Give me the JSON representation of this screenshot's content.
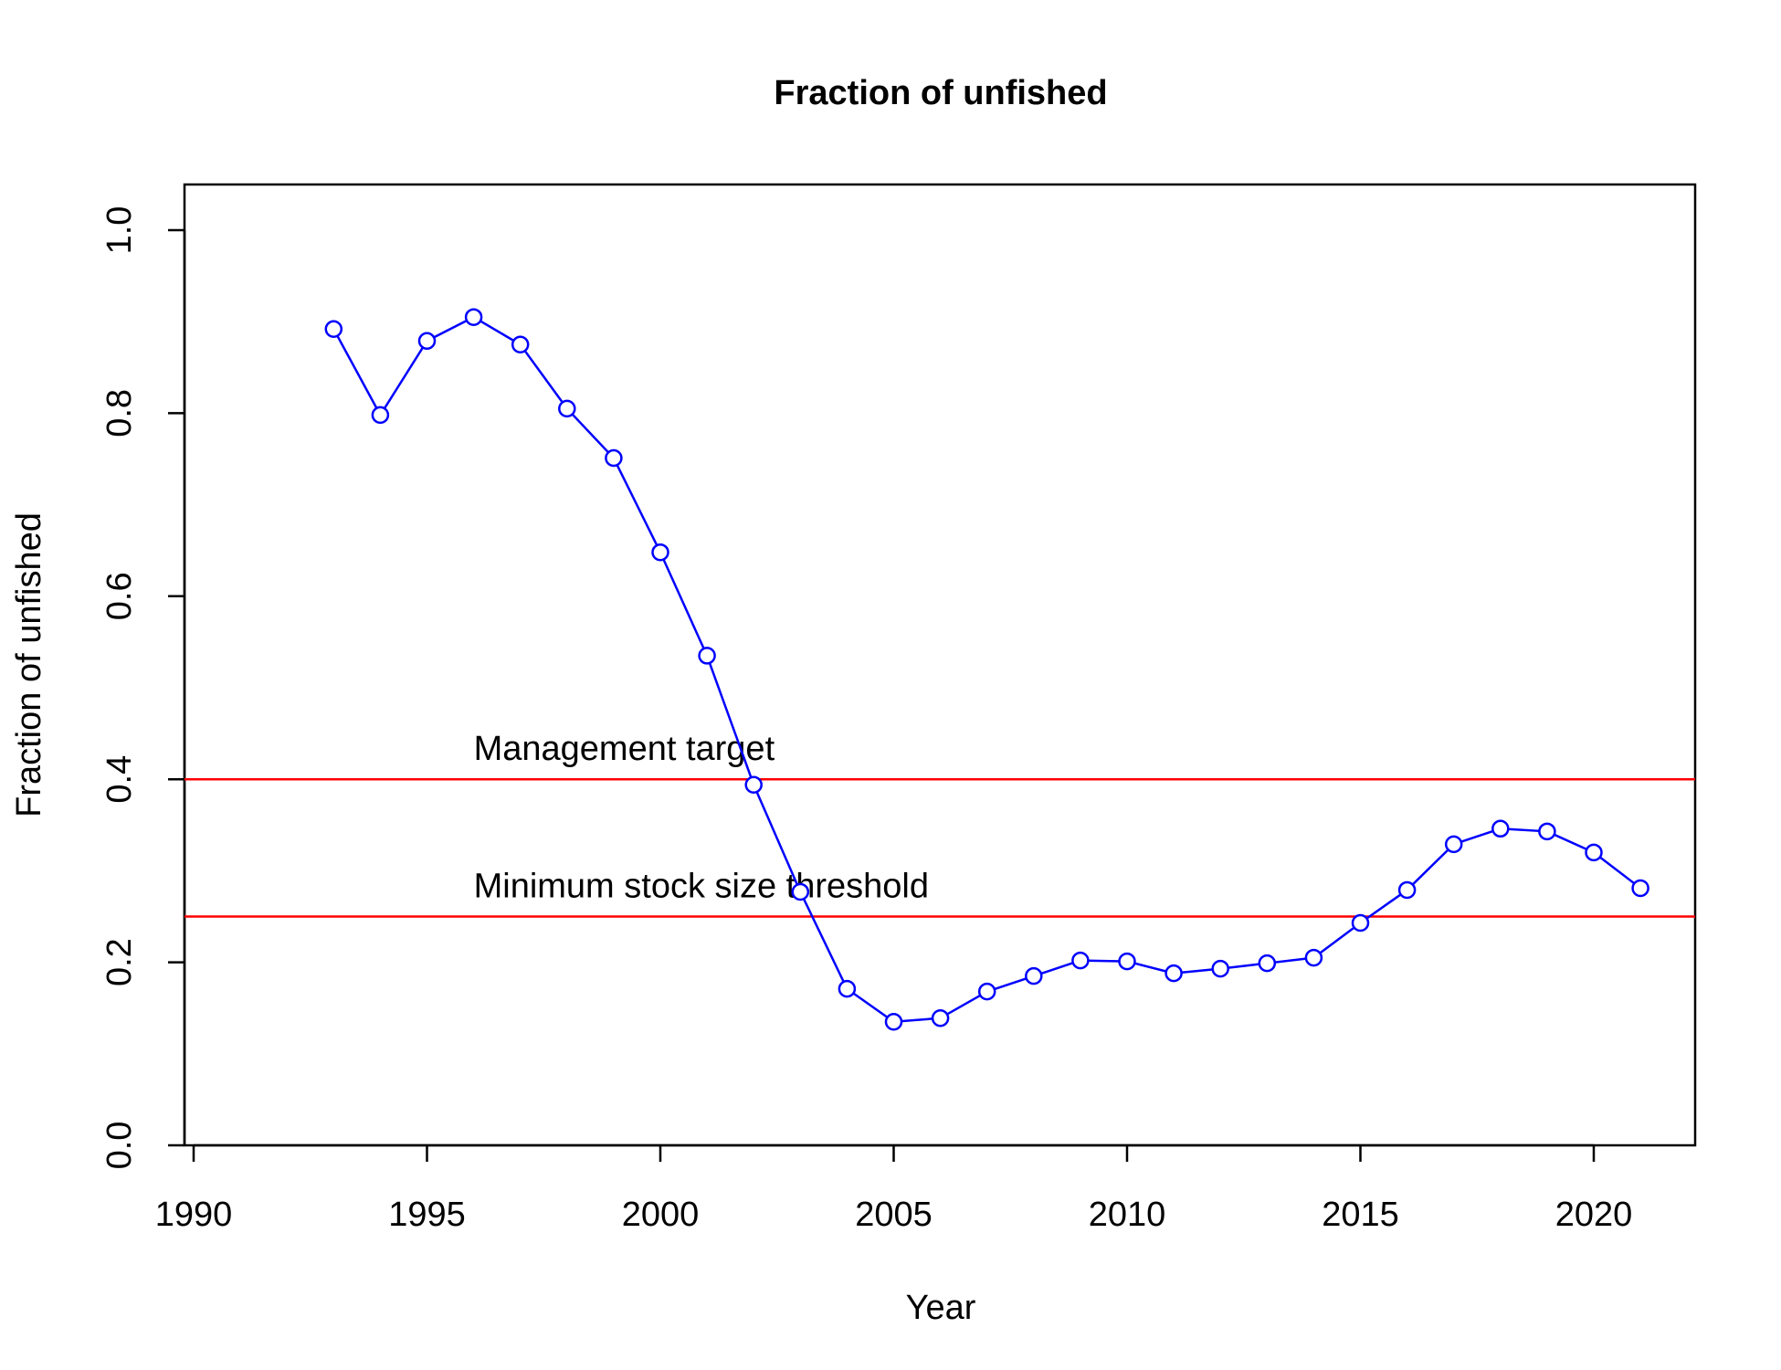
{
  "chart_data": {
    "type": "line",
    "title": "Fraction of unfished",
    "xlabel": "Year",
    "ylabel": "Fraction of unfished",
    "xlim": [
      1990,
      2022
    ],
    "ylim": [
      0.0,
      1.05
    ],
    "x_ticks": [
      1990,
      1995,
      2000,
      2005,
      2010,
      2015,
      2020
    ],
    "x_tick_labels": [
      "1990",
      "1995",
      "2000",
      "2005",
      "2010",
      "2015",
      "2020"
    ],
    "y_ticks": [
      0.0,
      0.2,
      0.4,
      0.6,
      0.8,
      1.0
    ],
    "y_tick_labels": [
      "0.0",
      "0.2",
      "0.4",
      "0.6",
      "0.8",
      "1.0"
    ],
    "grid": false,
    "series": [
      {
        "color": "#0000FF",
        "marker": "open-circle",
        "x": [
          1993,
          1994,
          1995,
          1996,
          1997,
          1998,
          1999,
          2000,
          2001,
          2002,
          2003,
          2004,
          2005,
          2006,
          2007,
          2008,
          2009,
          2010,
          2011,
          2012,
          2013,
          2014,
          2015,
          2016,
          2017,
          2018,
          2019,
          2020,
          2021
        ],
        "y": [
          0.892,
          0.798,
          0.879,
          0.905,
          0.875,
          0.805,
          0.751,
          0.648,
          0.535,
          0.394,
          0.277,
          0.171,
          0.135,
          0.139,
          0.168,
          0.185,
          0.202,
          0.201,
          0.188,
          0.193,
          0.199,
          0.205,
          0.243,
          0.279,
          0.329,
          0.346,
          0.343,
          0.32,
          0.281
        ]
      }
    ],
    "reference_lines": [
      {
        "y": 0.4,
        "label": "Management target",
        "label_x": 1996,
        "color": "#FF0000"
      },
      {
        "y": 0.25,
        "label": "Minimum stock size threshold",
        "label_x": 1996,
        "color": "#FF0000"
      }
    ]
  }
}
